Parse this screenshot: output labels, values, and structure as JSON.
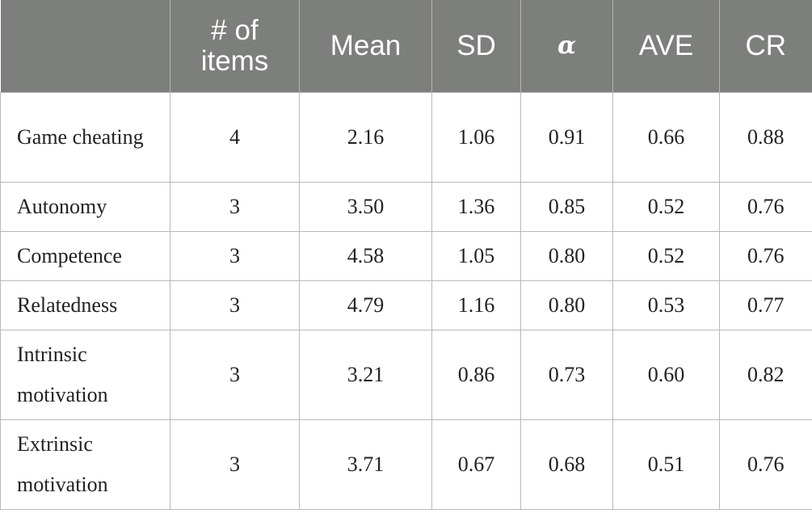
{
  "header": [
    "",
    "# of items",
    "Mean",
    "SD",
    "α",
    "AVE",
    "CR"
  ],
  "rows": [
    [
      "Game cheating",
      "4",
      "2.16",
      "1.06",
      "0.91",
      "0.66",
      "0.88"
    ],
    [
      "Autonomy",
      "3",
      "3.50",
      "1.36",
      "0.85",
      "0.52",
      "0.76"
    ],
    [
      "Competence",
      "3",
      "4.58",
      "1.05",
      "0.80",
      "0.52",
      "0.76"
    ],
    [
      "Relatedness",
      "3",
      "4.79",
      "1.16",
      "0.80",
      "0.53",
      "0.77"
    ],
    [
      "Intrinsic motivation",
      "3",
      "3.21",
      "0.86",
      "0.73",
      "0.60",
      "0.82"
    ],
    [
      "Extrinsic motivation",
      "3",
      "3.71",
      "0.67",
      "0.68",
      "0.51",
      "0.76"
    ]
  ]
}
